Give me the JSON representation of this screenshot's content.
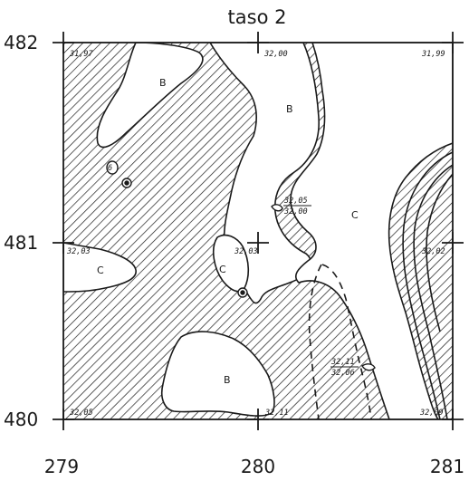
{
  "title": "taso 2",
  "grid_labels": {
    "y_top": "482",
    "y_mid": "481",
    "y_bottom": "480",
    "x_left": "279",
    "x_mid": "280",
    "x_right": "281"
  },
  "elevations": {
    "top_left": "31,97",
    "top_mid": "32,00",
    "top_right": "31,99",
    "mid_left": "32,03",
    "mid_center": "32,03",
    "mid_right": "32,02",
    "upper_pair_top": "32,05",
    "upper_pair_bottom": "32,00",
    "lower_pair_top": "32,11",
    "lower_pair_bottom": "32,06",
    "bottom_left": "32,05",
    "bottom_mid": "32,11",
    "bottom_right": "32,09"
  },
  "layers": {
    "b_top_left": "B",
    "b_top_mid": "B",
    "b_bottom": "B",
    "c_left": "C",
    "c_center": "C",
    "c_right": "C",
    "small_mark": "6"
  },
  "colors": {
    "ink": "#1a1a1a",
    "paper": "#ffffff"
  }
}
